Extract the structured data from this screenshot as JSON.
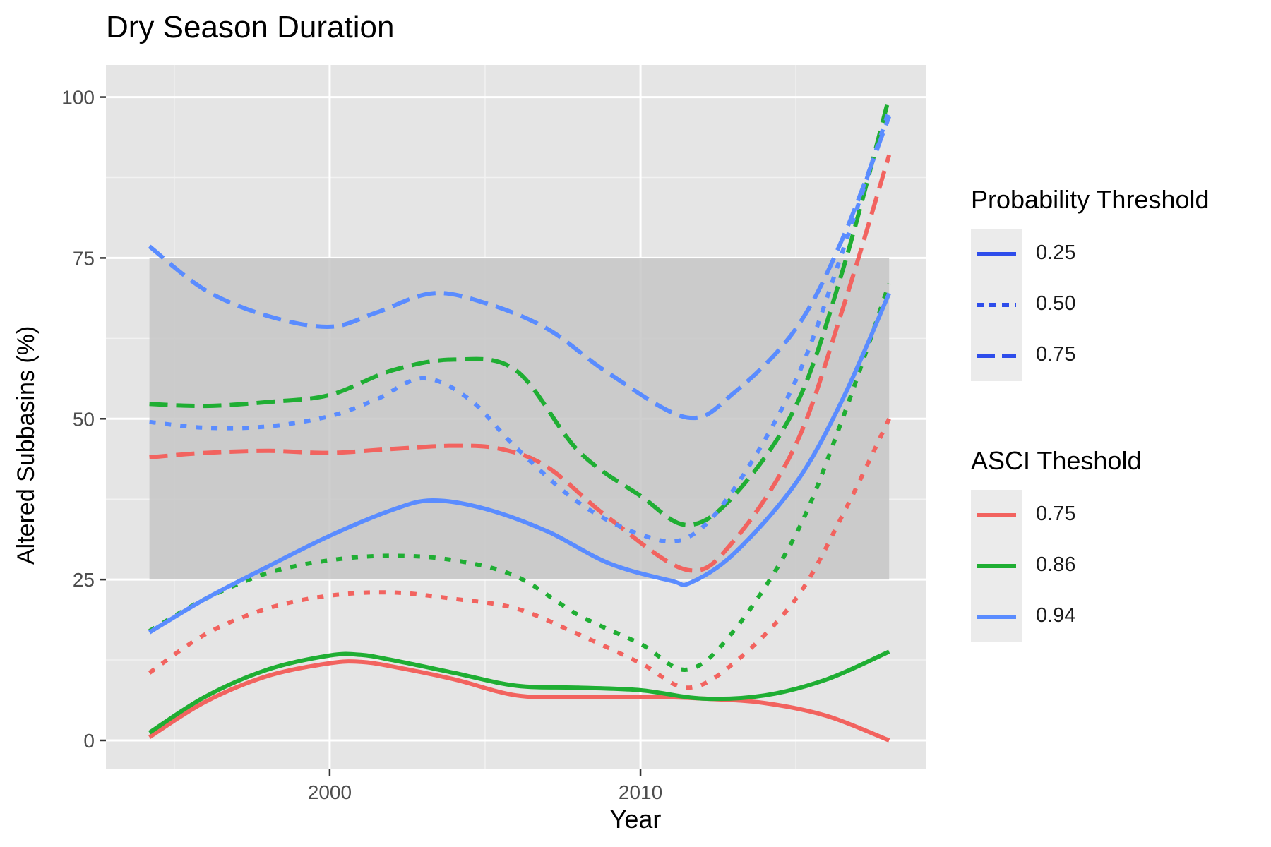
{
  "chart_data": {
    "type": "line",
    "title": "Dry Season Duration",
    "xlabel": "Year",
    "ylabel": "Altered Subbasins (%)",
    "xlim": [
      1992.8,
      2019.2
    ],
    "ylim": [
      -4.5,
      105
    ],
    "x_ticks": [
      2000,
      2010
    ],
    "y_ticks": [
      0,
      25,
      50,
      75,
      100
    ],
    "grid": true,
    "band": {
      "ymin": 25,
      "ymax": 75,
      "xmin": 1994.2,
      "xmax": 2018,
      "color": "#c7c7c7"
    },
    "legends": [
      {
        "title": "Probability Threshold",
        "items": [
          {
            "label": "0.25",
            "linetype": "solid"
          },
          {
            "label": "0.50",
            "linetype": "dotted"
          },
          {
            "label": "0.75",
            "linetype": "dashed"
          }
        ]
      },
      {
        "title": "ASCI Theshold",
        "items": [
          {
            "label": "0.75",
            "color": "#F2635F"
          },
          {
            "label": "0.86",
            "color": "#1FAE33"
          },
          {
            "label": "0.94",
            "color": "#5A8CFF"
          }
        ]
      }
    ],
    "series": [
      {
        "asci": "0.75",
        "prob": "0.25",
        "color": "#F2635F",
        "linetype": "solid",
        "x": [
          1994.2,
          1996,
          1998,
          2000,
          2001,
          2002,
          2004,
          2006,
          2008,
          2010,
          2012,
          2014,
          2016,
          2018
        ],
        "y": [
          0.5,
          6,
          10,
          12,
          12.2,
          11.5,
          9.5,
          7,
          6.7,
          6.8,
          6.5,
          5.8,
          3.8,
          0
        ]
      },
      {
        "asci": "0.75",
        "prob": "0.50",
        "color": "#F2635F",
        "linetype": "dotted",
        "x": [
          1994.2,
          1996,
          1998,
          2000,
          2002,
          2004,
          2006,
          2008,
          2010,
          2011.5,
          2013,
          2015,
          2016.5,
          2018
        ],
        "y": [
          10.5,
          16.5,
          20.5,
          22.5,
          23,
          22,
          20.5,
          16.5,
          12,
          8.2,
          12,
          22,
          35,
          50
        ]
      },
      {
        "asci": "0.75",
        "prob": "0.75",
        "color": "#F2635F",
        "linetype": "dashed",
        "x": [
          1994.2,
          1996,
          1998,
          2000,
          2002,
          2004,
          2005.5,
          2007,
          2009,
          2011.5,
          2013,
          2015,
          2016.5,
          2018
        ],
        "y": [
          44,
          44.7,
          45,
          44.7,
          45.3,
          45.8,
          45.3,
          42.5,
          34.5,
          26.5,
          31,
          46,
          67,
          91
        ]
      },
      {
        "asci": "0.86",
        "prob": "0.25",
        "color": "#1FAE33",
        "linetype": "solid",
        "x": [
          1994.2,
          1996,
          1998,
          2000,
          2001,
          2002,
          2004,
          2006,
          2008,
          2010,
          2012,
          2014,
          2016,
          2018
        ],
        "y": [
          1.2,
          6.8,
          11,
          13.2,
          13.3,
          12.5,
          10.5,
          8.5,
          8.2,
          7.8,
          6.5,
          7,
          9.5,
          13.8
        ]
      },
      {
        "asci": "0.86",
        "prob": "0.50",
        "color": "#1FAE33",
        "linetype": "dotted",
        "x": [
          1994.2,
          1996,
          1998,
          2000,
          2002,
          2004,
          2006,
          2008,
          2010,
          2011.5,
          2013,
          2015,
          2016.5,
          2018
        ],
        "y": [
          17,
          22,
          26,
          28,
          28.7,
          28,
          25.5,
          19.5,
          15,
          11,
          17,
          32,
          50,
          71
        ]
      },
      {
        "asci": "0.86",
        "prob": "0.75",
        "color": "#1FAE33",
        "linetype": "dashed",
        "x": [
          1994.2,
          1996,
          1998,
          2000,
          2002,
          2004,
          2006,
          2008,
          2010,
          2011.5,
          2013,
          2015,
          2016.5,
          2018
        ],
        "y": [
          52.3,
          52,
          52.6,
          53.7,
          57.5,
          59.2,
          57.5,
          45,
          38,
          33.5,
          38,
          52,
          73,
          100
        ]
      },
      {
        "asci": "0.94",
        "prob": "0.25",
        "color": "#5A8CFF",
        "linetype": "solid",
        "x": [
          1994.2,
          1996,
          1998,
          2000,
          2002,
          2003.3,
          2005,
          2007,
          2009,
          2011,
          2011.6,
          2013,
          2015,
          2016.5,
          2018
        ],
        "y": [
          16.8,
          22,
          27,
          31.8,
          35.8,
          37.3,
          36,
          32.5,
          27.5,
          24.8,
          24.5,
          29,
          40,
          53,
          69.5
        ]
      },
      {
        "asci": "0.94",
        "prob": "0.50",
        "color": "#5A8CFF",
        "linetype": "dotted",
        "x": [
          1994.2,
          1996,
          1998,
          2000,
          2001.5,
          2003,
          2004.5,
          2006,
          2008,
          2010,
          2011.5,
          2013,
          2015,
          2016.5,
          2018
        ],
        "y": [
          49.5,
          48.6,
          48.8,
          50.4,
          53,
          56.3,
          53,
          45.5,
          37,
          32,
          31.5,
          39,
          56,
          76,
          98
        ]
      },
      {
        "asci": "0.94",
        "prob": "0.75",
        "color": "#5A8CFF",
        "linetype": "dashed",
        "x": [
          1994.2,
          1996,
          1998,
          2000,
          2001.5,
          2003.3,
          2005,
          2007,
          2009,
          2011.5,
          2013,
          2015,
          2016.5,
          2018
        ],
        "y": [
          76.8,
          70,
          66,
          64.3,
          66.5,
          69.5,
          68,
          64,
          57,
          50.2,
          54,
          64,
          78,
          97
        ]
      }
    ]
  }
}
